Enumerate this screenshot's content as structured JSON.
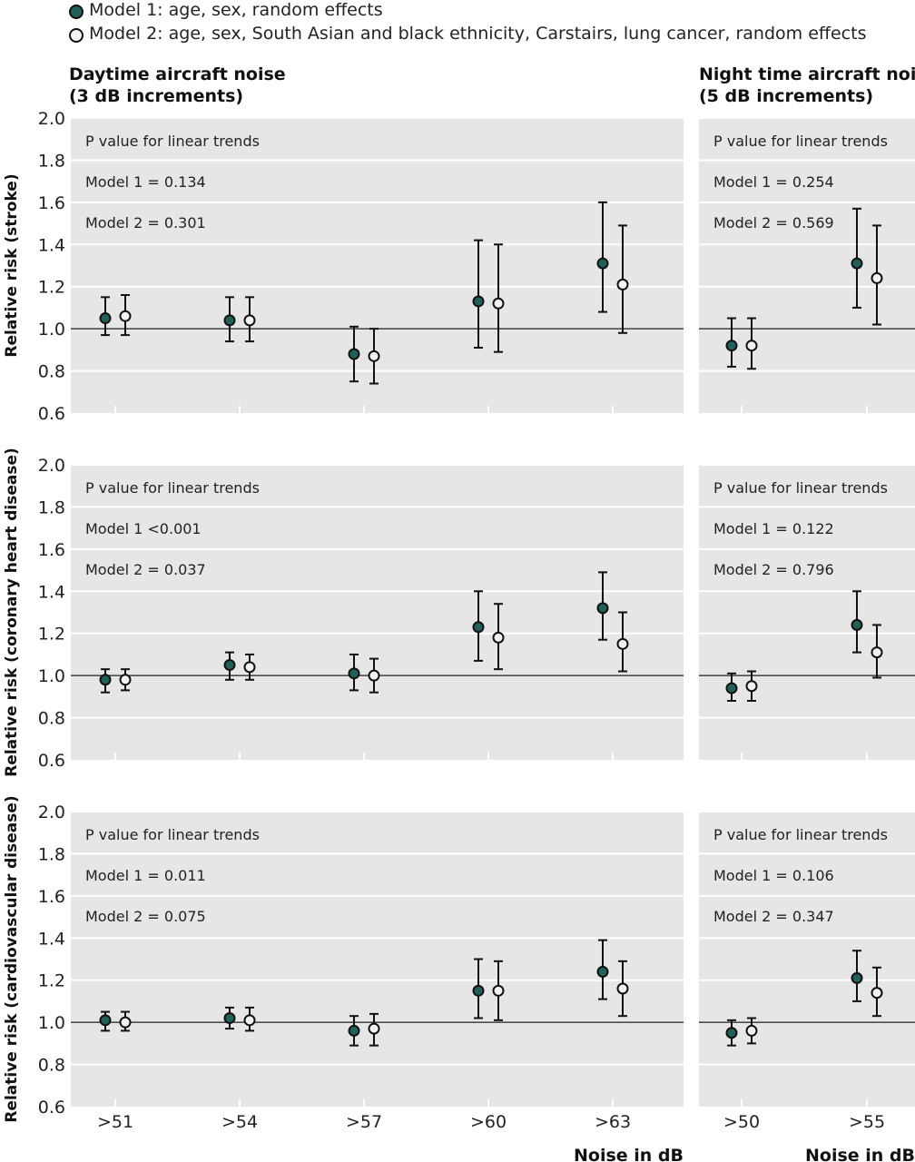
{
  "legend": {
    "model1": "Model 1: age, sex, random effects",
    "model2": "Model 2: age, sex, South Asian and black ethnicity, Carstairs, lung cancer, random effects"
  },
  "columns": {
    "day": {
      "title_line1": "Daytime aircraft noise",
      "title_line2": "(3 dB increments)"
    },
    "night": {
      "title_line1": "Night time aircraft noise",
      "title_line2": "(5 dB increments)"
    }
  },
  "x_axis_title": "Noise in dB",
  "colors": {
    "model1_fill": "#22605a",
    "model2_fill": "#f2f2f2",
    "panel_bg": "#e6e6e6"
  },
  "chart_data": [
    {
      "type": "scatter",
      "row": 0,
      "col": "day",
      "ylabel": "Relative risk (stroke)",
      "ylim": [
        0.6,
        2.0
      ],
      "yticks": [
        "2.0",
        "1.8",
        "1.6",
        "1.4",
        "1.2",
        "1.0",
        "0.8",
        "0.6"
      ],
      "categories": [
        ">51",
        ">54",
        ">57",
        ">60",
        ">63"
      ],
      "show_xlabels": false,
      "pvalue_title": "P value for linear trends",
      "pvalue_model1": "Model 1 = 0.134",
      "pvalue_model2": "Model 2 = 0.301",
      "series": [
        {
          "name": "Model 1",
          "values": [
            1.05,
            1.04,
            0.88,
            1.13,
            1.31
          ],
          "lower": [
            0.97,
            0.94,
            0.75,
            0.91,
            1.08
          ],
          "upper": [
            1.15,
            1.15,
            1.01,
            1.42,
            1.6
          ]
        },
        {
          "name": "Model 2",
          "values": [
            1.06,
            1.04,
            0.87,
            1.12,
            1.21
          ],
          "lower": [
            0.97,
            0.94,
            0.74,
            0.89,
            0.98
          ],
          "upper": [
            1.16,
            1.15,
            1.0,
            1.4,
            1.49
          ]
        }
      ]
    },
    {
      "type": "scatter",
      "row": 0,
      "col": "night",
      "ylim": [
        0.6,
        2.0
      ],
      "categories": [
        ">50",
        ">55"
      ],
      "show_xlabels": false,
      "pvalue_title": "P value for linear trends",
      "pvalue_model1": "Model 1 = 0.254",
      "pvalue_model2": "Model 2 = 0.569",
      "series": [
        {
          "name": "Model 1",
          "values": [
            0.92,
            1.31
          ],
          "lower": [
            0.82,
            1.1
          ],
          "upper": [
            1.05,
            1.57
          ]
        },
        {
          "name": "Model 2",
          "values": [
            0.92,
            1.24
          ],
          "lower": [
            0.81,
            1.02
          ],
          "upper": [
            1.05,
            1.49
          ]
        }
      ]
    },
    {
      "type": "scatter",
      "row": 1,
      "col": "day",
      "ylabel": "Relative risk (coronary heart disease)",
      "ylim": [
        0.6,
        2.0
      ],
      "yticks": [
        "2.0",
        "1.8",
        "1.6",
        "1.4",
        "1.2",
        "1.0",
        "0.8",
        "0.6"
      ],
      "categories": [
        ">51",
        ">54",
        ">57",
        ">60",
        ">63"
      ],
      "show_xlabels": false,
      "pvalue_title": "P value for linear trends",
      "pvalue_model1": "Model 1 <0.001",
      "pvalue_model2": "Model 2 = 0.037",
      "series": [
        {
          "name": "Model 1",
          "values": [
            0.98,
            1.05,
            1.01,
            1.23,
            1.32
          ],
          "lower": [
            0.92,
            0.98,
            0.93,
            1.07,
            1.17
          ],
          "upper": [
            1.03,
            1.11,
            1.1,
            1.4,
            1.49
          ]
        },
        {
          "name": "Model 2",
          "values": [
            0.98,
            1.04,
            1.0,
            1.18,
            1.15
          ],
          "lower": [
            0.93,
            0.98,
            0.92,
            1.03,
            1.02
          ],
          "upper": [
            1.03,
            1.1,
            1.08,
            1.34,
            1.3
          ]
        }
      ]
    },
    {
      "type": "scatter",
      "row": 1,
      "col": "night",
      "ylim": [
        0.6,
        2.0
      ],
      "categories": [
        ">50",
        ">55"
      ],
      "show_xlabels": false,
      "pvalue_title": "P value for linear trends",
      "pvalue_model1": "Model 1 = 0.122",
      "pvalue_model2": "Model 2 = 0.796",
      "series": [
        {
          "name": "Model 1",
          "values": [
            0.94,
            1.24
          ],
          "lower": [
            0.88,
            1.11
          ],
          "upper": [
            1.01,
            1.4
          ]
        },
        {
          "name": "Model 2",
          "values": [
            0.95,
            1.11
          ],
          "lower": [
            0.88,
            0.99
          ],
          "upper": [
            1.02,
            1.24
          ]
        }
      ]
    },
    {
      "type": "scatter",
      "row": 2,
      "col": "day",
      "ylabel": "Relative risk (cardiovascular disease)",
      "ylim": [
        0.6,
        2.0
      ],
      "yticks": [
        "2.0",
        "1.8",
        "1.6",
        "1.4",
        "1.2",
        "1.0",
        "0.8",
        "0.6"
      ],
      "categories": [
        ">51",
        ">54",
        ">57",
        ">60",
        ">63"
      ],
      "show_xlabels": true,
      "pvalue_title": "P value for linear trends",
      "pvalue_model1": "Model 1 = 0.011",
      "pvalue_model2": "Model 2 = 0.075",
      "series": [
        {
          "name": "Model 1",
          "values": [
            1.01,
            1.02,
            0.96,
            1.15,
            1.24
          ],
          "lower": [
            0.96,
            0.97,
            0.89,
            1.02,
            1.11
          ],
          "upper": [
            1.05,
            1.07,
            1.03,
            1.3,
            1.39
          ]
        },
        {
          "name": "Model 2",
          "values": [
            1.0,
            1.01,
            0.97,
            1.15,
            1.16
          ],
          "lower": [
            0.96,
            0.96,
            0.89,
            1.01,
            1.03
          ],
          "upper": [
            1.05,
            1.07,
            1.04,
            1.29,
            1.29
          ]
        }
      ]
    },
    {
      "type": "scatter",
      "row": 2,
      "col": "night",
      "ylim": [
        0.6,
        2.0
      ],
      "categories": [
        ">50",
        ">55"
      ],
      "show_xlabels": true,
      "pvalue_title": "P value for linear trends",
      "pvalue_model1": "Model 1 = 0.106",
      "pvalue_model2": "Model 2 = 0.347",
      "series": [
        {
          "name": "Model 1",
          "values": [
            0.95,
            1.21
          ],
          "lower": [
            0.89,
            1.1
          ],
          "upper": [
            1.01,
            1.34
          ]
        },
        {
          "name": "Model 2",
          "values": [
            0.96,
            1.14
          ],
          "lower": [
            0.9,
            1.03
          ],
          "upper": [
            1.02,
            1.26
          ]
        }
      ]
    }
  ]
}
